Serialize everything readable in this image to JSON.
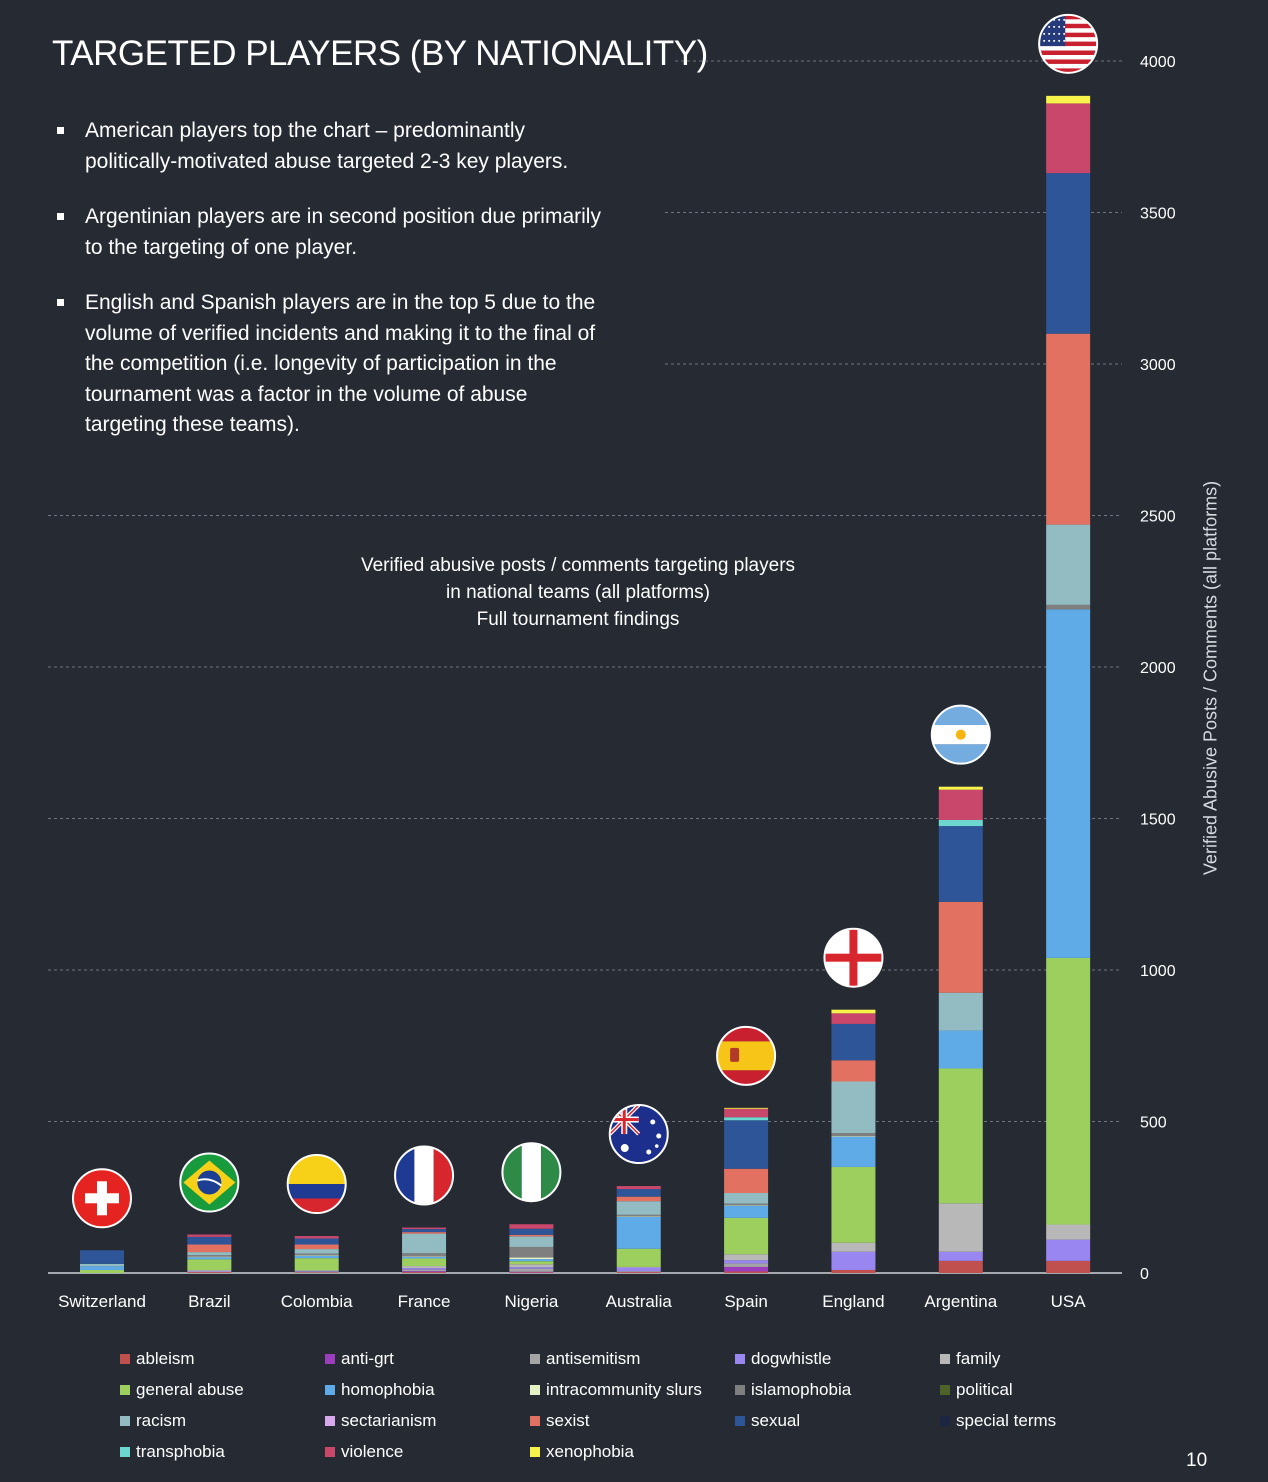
{
  "title": "TARGETED PLAYERS (BY NATIONALITY)",
  "bullets": [
    "American players top the chart – predominantly politically-motivated abuse targeted 2-3 key players.",
    "Argentinian players are in second position due primarily to the targeting of one player.",
    "English and Spanish players are in the top 5 due to the volume of verified incidents and making it to the final of the competition (i.e. longevity of participation in the tournament was a factor in the volume of abuse targeting these teams)."
  ],
  "page_number": "10",
  "chart_data": {
    "type": "bar",
    "stacked": true,
    "title": "",
    "subtitle": [
      "Verified abusive posts / comments targeting players",
      "in national teams (all platforms)",
      "Full tournament findings"
    ],
    "xlabel": "",
    "ylabel": "Verified Abusive Posts / Comments (all platforms)",
    "y_axis_side": "right",
    "ylim": [
      0,
      4000
    ],
    "yticks": [
      0,
      500,
      1000,
      1500,
      2000,
      2500,
      3000,
      3500,
      4000
    ],
    "grid": "horizontal dashed",
    "legend_position": "bottom",
    "categories": [
      "Switzerland",
      "Brazil",
      "Colombia",
      "France",
      "Nigeria",
      "Australia",
      "Spain",
      "England",
      "Argentina",
      "USA"
    ],
    "category_flags": [
      "switzerland-flag-icon",
      "brazil-flag-icon",
      "colombia-flag-icon",
      "france-flag-icon",
      "nigeria-flag-icon",
      "australia-flag-icon",
      "spain-flag-icon",
      "england-flag-icon",
      "argentina-flag-icon",
      "usa-flag-icon"
    ],
    "series": [
      {
        "name": "ableism",
        "color": "#c0504d",
        "values": [
          0,
          3,
          2,
          3,
          2,
          3,
          5,
          10,
          40,
          40
        ]
      },
      {
        "name": "anti-grt",
        "color": "#9b3dbd",
        "values": [
          0,
          0,
          0,
          3,
          2,
          0,
          15,
          0,
          0,
          0
        ]
      },
      {
        "name": "antisemitism",
        "color": "#a5a5a5",
        "values": [
          0,
          2,
          2,
          5,
          10,
          3,
          12,
          0,
          0,
          0
        ]
      },
      {
        "name": "dogwhistle",
        "color": "#9a86f0",
        "values": [
          0,
          2,
          2,
          5,
          5,
          12,
          10,
          60,
          30,
          70
        ]
      },
      {
        "name": "family",
        "color": "#b8b8b8",
        "values": [
          0,
          3,
          3,
          7,
          10,
          2,
          20,
          30,
          160,
          50
        ]
      },
      {
        "name": "general abuse",
        "color": "#9ccf5d",
        "values": [
          10,
          35,
          40,
          25,
          10,
          60,
          120,
          250,
          445,
          880
        ]
      },
      {
        "name": "homophobia",
        "color": "#5eabe8",
        "values": [
          12,
          7,
          8,
          5,
          7,
          105,
          40,
          100,
          125,
          1150
        ]
      },
      {
        "name": "intracommunity slurs",
        "color": "#e6f2c5",
        "values": [
          0,
          2,
          2,
          2,
          5,
          2,
          2,
          2,
          0,
          0
        ]
      },
      {
        "name": "islamophobia",
        "color": "#7f7f7f",
        "values": [
          0,
          5,
          5,
          10,
          35,
          5,
          5,
          10,
          0,
          15
        ]
      },
      {
        "name": "political",
        "color": "#4f6228",
        "values": [
          0,
          0,
          0,
          0,
          0,
          0,
          0,
          0,
          0,
          0
        ]
      },
      {
        "name": "racism",
        "color": "#93bcc2",
        "values": [
          8,
          10,
          15,
          65,
          35,
          45,
          35,
          170,
          125,
          265
        ]
      },
      {
        "name": "sectarianism",
        "color": "#d8a8ec",
        "values": [
          0,
          0,
          0,
          0,
          0,
          0,
          0,
          0,
          0,
          0
        ]
      },
      {
        "name": "sexist",
        "color": "#e27162",
        "values": [
          0,
          25,
          15,
          5,
          5,
          15,
          80,
          70,
          300,
          630
        ]
      },
      {
        "name": "sexual",
        "color": "#2e5597",
        "values": [
          45,
          25,
          20,
          10,
          20,
          25,
          160,
          120,
          250,
          530
        ]
      },
      {
        "name": "special terms",
        "color": "#1c2541",
        "values": [
          0,
          0,
          0,
          0,
          0,
          0,
          0,
          0,
          0,
          0
        ]
      },
      {
        "name": "transphobia",
        "color": "#6dd8cf",
        "values": [
          0,
          0,
          0,
          0,
          0,
          0,
          10,
          0,
          20,
          0
        ]
      },
      {
        "name": "violence",
        "color": "#c8476a",
        "values": [
          0,
          8,
          8,
          5,
          15,
          10,
          28,
          35,
          100,
          230
        ]
      },
      {
        "name": "xenophobia",
        "color": "#f7f34a",
        "values": [
          0,
          0,
          0,
          0,
          0,
          0,
          3,
          12,
          10,
          25
        ]
      }
    ]
  }
}
